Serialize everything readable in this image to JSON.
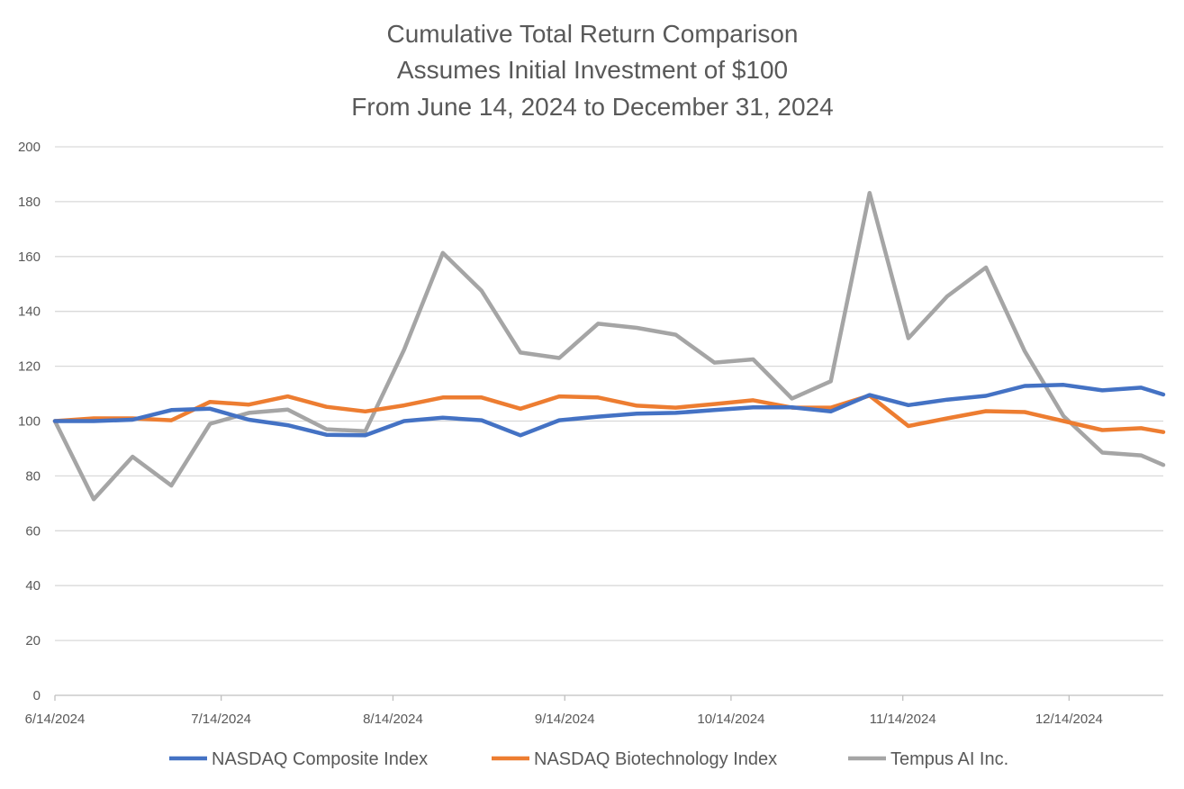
{
  "chart_data": {
    "type": "line",
    "title": [
      "Cumulative Total Return Comparison",
      "Assumes Initial Investment of $100",
      "From June 14, 2024 to December 31, 2024"
    ],
    "xlabel": "",
    "ylabel": "",
    "ylim": [
      0,
      200
    ],
    "yticks": [
      0,
      20,
      40,
      60,
      80,
      100,
      120,
      140,
      160,
      180,
      200
    ],
    "xtick_labels": [
      "6/14/2024",
      "7/14/2024",
      "8/14/2024",
      "9/14/2024",
      "10/14/2024",
      "11/14/2024",
      "12/14/2024"
    ],
    "xtick_days": [
      0,
      30,
      61,
      92,
      122,
      153,
      183
    ],
    "x_days": [
      0,
      7,
      14,
      21,
      28,
      35,
      42,
      49,
      56,
      63,
      70,
      77,
      84,
      91,
      98,
      105,
      112,
      119,
      126,
      133,
      140,
      147,
      154,
      161,
      168,
      175,
      182,
      189,
      196,
      200
    ],
    "xlim_days": [
      0,
      200
    ],
    "grid": true,
    "legend_position": "bottom",
    "series": [
      {
        "name": "NASDAQ Composite Index",
        "color": "#4472C4",
        "values": [
          100,
          100,
          100.5,
          104,
          104.5,
          100.5,
          98.5,
          95,
          94.8,
          100,
          101.2,
          100.3,
          94.8,
          100.3,
          101.6,
          102.7,
          103,
          104,
          105,
          105,
          103.5,
          109.5,
          105.8,
          107.8,
          109.2,
          112.8,
          113.2,
          111.2,
          112.2,
          109.7
        ]
      },
      {
        "name": "NASDAQ Biotechnology Index",
        "color": "#ED7D31",
        "values": [
          100,
          101,
          101,
          100.3,
          107,
          106,
          109,
          105.2,
          103.5,
          105.7,
          108.6,
          108.6,
          104.5,
          109,
          108.6,
          105.6,
          104.9,
          106.2,
          107.6,
          104.9,
          104.9,
          109.3,
          98.2,
          101,
          103.6,
          103.3,
          100,
          96.7,
          97.4,
          96
        ]
      },
      {
        "name": "Tempus AI Inc.",
        "color": "#A5A5A5",
        "values": [
          100,
          71.5,
          87,
          76.5,
          99,
          103,
          104.2,
          97,
          96.3,
          126,
          161.3,
          147.5,
          125,
          123,
          135.5,
          134,
          131.5,
          121.3,
          122.5,
          108.2,
          114.5,
          183.2,
          130.2,
          145.5,
          156,
          125.5,
          101.8,
          88.5,
          87.5,
          84
        ]
      }
    ]
  }
}
